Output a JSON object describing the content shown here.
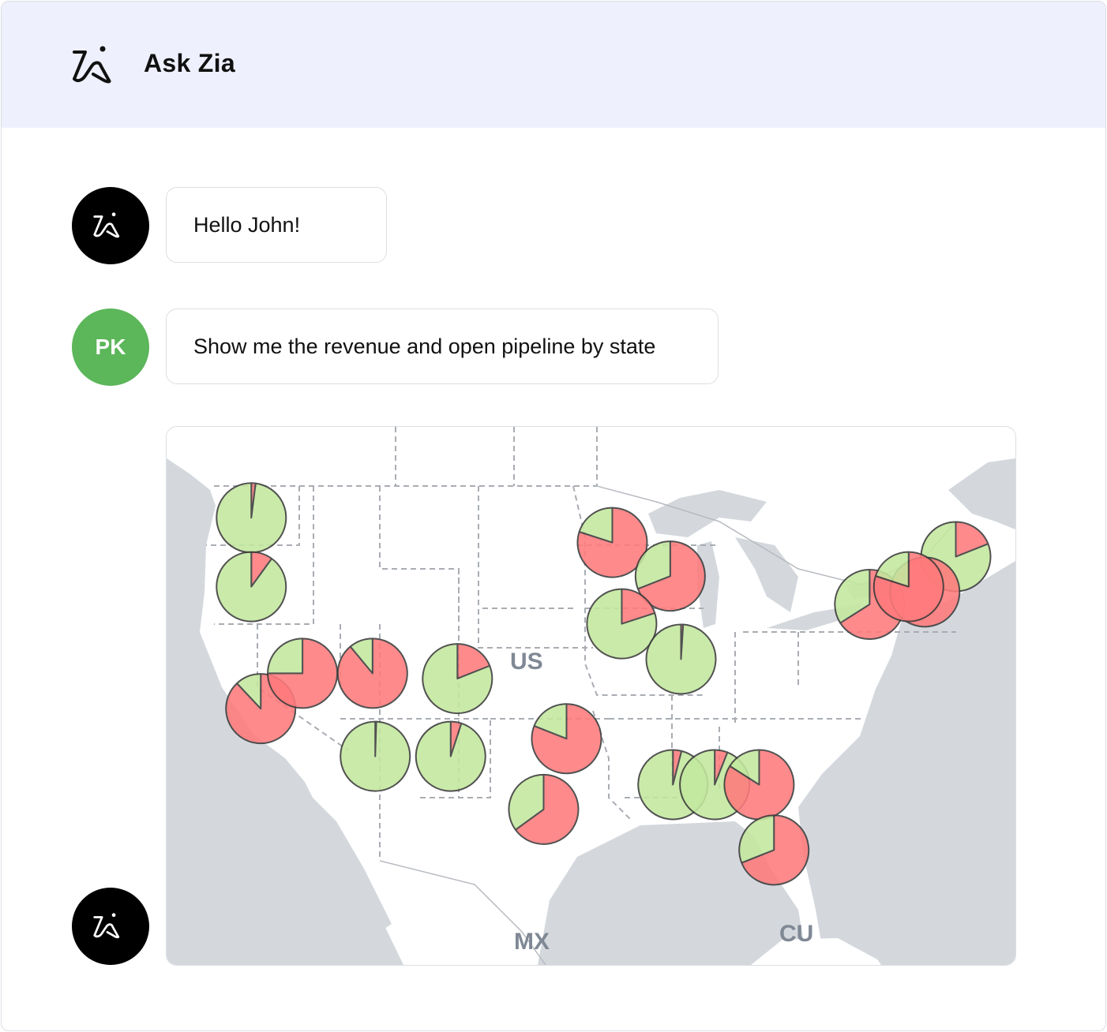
{
  "header": {
    "title": "Ask Zia",
    "logo_icon": "zia-logo-icon"
  },
  "messages": [
    {
      "sender": "zia",
      "avatar_icon": "zia-logo-icon",
      "text": "Hello  John!"
    },
    {
      "sender": "user",
      "avatar_initials": "PK",
      "avatar_color": "#5cb65a",
      "text": "Show me the revenue and open pipeline by state"
    },
    {
      "sender": "zia",
      "avatar_icon": "zia-logo-icon"
    }
  ],
  "colors": {
    "header_bg": "#eef0fd",
    "slice_red": "#ff7a7c",
    "slice_green": "#c3e89e",
    "ocean": "#d4d8dd"
  },
  "chart_data": {
    "type": "pie-map",
    "map_labels": [
      "US",
      "MX",
      "CU"
    ],
    "slice_colors": [
      "#ff7a7c",
      "#c3e89e"
    ],
    "pies": [
      {
        "lon": -120.5,
        "lat": 47.4,
        "slices": [
          0.02,
          0.98
        ]
      },
      {
        "lon": -120.5,
        "lat": 43.5,
        "slices": [
          0.1,
          0.9
        ]
      },
      {
        "lon": -119.8,
        "lat": 36.6,
        "slices": [
          0.88,
          0.12
        ]
      },
      {
        "lon": -116.7,
        "lat": 38.6,
        "slices": [
          0.75,
          0.25
        ]
      },
      {
        "lon": -111.5,
        "lat": 38.6,
        "slices": [
          0.89,
          0.11
        ]
      },
      {
        "lon": -105.2,
        "lat": 38.3,
        "slices": [
          0.19,
          0.81
        ]
      },
      {
        "lon": -111.3,
        "lat": 33.9,
        "slices": [
          0.005,
          0.995
        ]
      },
      {
        "lon": -105.7,
        "lat": 33.9,
        "slices": [
          0.05,
          0.95
        ]
      },
      {
        "lon": -97.1,
        "lat": 34.9,
        "slices": [
          0.81,
          0.19
        ]
      },
      {
        "lon": -98.8,
        "lat": 30.9,
        "slices": [
          0.65,
          0.35
        ]
      },
      {
        "lon": -93.7,
        "lat": 46.0,
        "slices": [
          0.8,
          0.2
        ]
      },
      {
        "lon": -89.4,
        "lat": 44.1,
        "slices": [
          0.69,
          0.31
        ]
      },
      {
        "lon": -93.0,
        "lat": 41.4,
        "slices": [
          0.2,
          0.8
        ]
      },
      {
        "lon": -88.6,
        "lat": 39.4,
        "slices": [
          0.01,
          0.99
        ]
      },
      {
        "lon": -89.2,
        "lat": 32.3,
        "slices": [
          0.04,
          0.96
        ]
      },
      {
        "lon": -86.1,
        "lat": 32.3,
        "slices": [
          0.06,
          0.94
        ]
      },
      {
        "lon": -82.8,
        "lat": 32.3,
        "slices": [
          0.84,
          0.16
        ]
      },
      {
        "lon": -81.7,
        "lat": 28.6,
        "slices": [
          0.69,
          0.31
        ]
      },
      {
        "lon": -68.2,
        "lat": 45.2,
        "slices": [
          0.19,
          0.81
        ]
      },
      {
        "lon": -74.6,
        "lat": 42.5,
        "slices": [
          0.66,
          0.34
        ]
      },
      {
        "lon": -70.5,
        "lat": 43.2,
        "slices": [
          1.0,
          0.0
        ]
      },
      {
        "lon": -71.7,
        "lat": 43.5,
        "slices": [
          0.8,
          0.2
        ]
      }
    ]
  }
}
